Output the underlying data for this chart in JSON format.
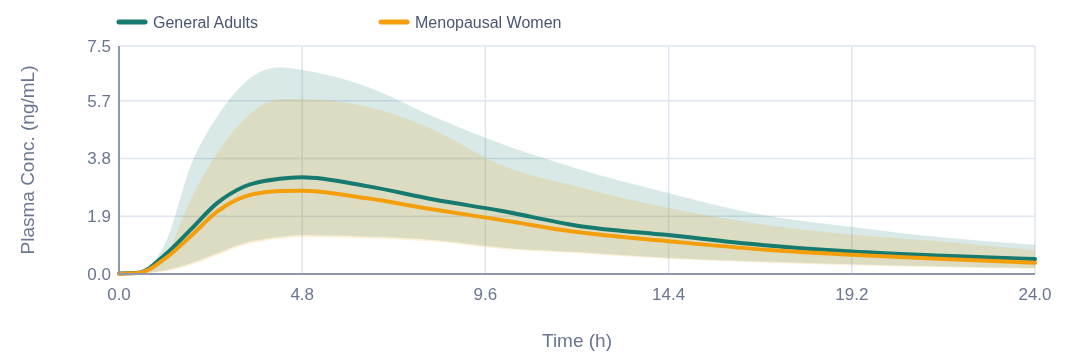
{
  "chart_data": {
    "type": "line",
    "xlabel": "Time (h)",
    "ylabel": "Plasma Conc. (ng/mL)",
    "x": [
      0,
      0.5,
      1.25,
      1.87,
      2.57,
      3.27,
      4.2,
      4.8,
      6.5,
      8.25,
      10,
      12,
      14.4,
      16.8,
      19.2,
      21.6,
      24
    ],
    "series": [
      {
        "name": "General Adults",
        "color": "#167a6e",
        "values": [
          0.02,
          0.04,
          0.68,
          1.45,
          2.33,
          2.87,
          3.13,
          3.18,
          2.89,
          2.45,
          2.08,
          1.59,
          1.28,
          0.96,
          0.74,
          0.6,
          0.49
        ],
        "lower": [
          0.01,
          0.02,
          0.13,
          0.35,
          0.68,
          1.01,
          1.22,
          1.28,
          1.23,
          1.12,
          0.87,
          0.72,
          0.53,
          0.41,
          0.32,
          0.25,
          0.2
        ],
        "upper": [
          0.03,
          0.08,
          1.12,
          3.53,
          5.17,
          6.27,
          6.8,
          6.71,
          6.16,
          5.17,
          4.29,
          3.47,
          2.66,
          1.96,
          1.55,
          1.2,
          0.96
        ]
      },
      {
        "name": "Menopausal Women",
        "color": "#f59e0b",
        "values": [
          0.01,
          0.03,
          0.55,
          1.23,
          2.05,
          2.54,
          2.73,
          2.74,
          2.49,
          2.12,
          1.78,
          1.38,
          1.08,
          0.81,
          0.63,
          0.49,
          0.37
        ],
        "lower": [
          0.01,
          0.02,
          0.1,
          0.3,
          0.62,
          0.95,
          1.16,
          1.22,
          1.18,
          1.07,
          0.83,
          0.68,
          0.5,
          0.38,
          0.29,
          0.22,
          0.17
        ],
        "upper": [
          0.02,
          0.06,
          0.69,
          2.43,
          3.97,
          5.07,
          5.75,
          5.76,
          5.5,
          4.74,
          3.59,
          2.88,
          2.17,
          1.64,
          1.3,
          1.06,
          0.78
        ]
      }
    ],
    "xlim": [
      0,
      24
    ],
    "xticks": [
      {
        "value": 0,
        "label": "0.0"
      },
      4.8,
      9.6,
      14.4,
      19.2,
      {
        "value": 24,
        "label": "24.0"
      }
    ],
    "ylim": [
      0,
      7.5
    ],
    "yticks": [
      {
        "value": 0,
        "label": "0.0"
      },
      1.9,
      3.8,
      5.7,
      7.5
    ],
    "grid": true,
    "legend": "top left",
    "marker": "none",
    "line_style": "solid"
  }
}
